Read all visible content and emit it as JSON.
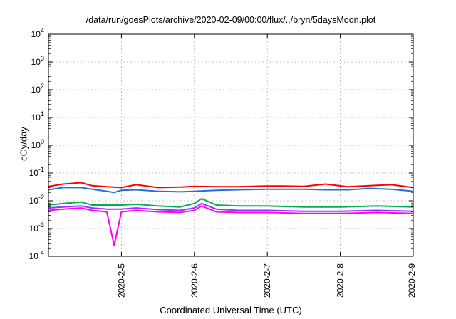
{
  "chart_data": {
    "type": "line",
    "title": "/data/run/goesPlots/archive/2020-02-09/00:00/flux/../bryn/5daysMoon.plot",
    "xlabel": "Coordinated Universal Time (UTC)",
    "ylabel": "cGy/day",
    "y_scale": "log",
    "ylim": [
      0.0001,
      10000
    ],
    "xlim": [
      "2020-02-04T00:00",
      "2020-02-09T00:00"
    ],
    "y_ticks": [
      {
        "value": 0.0001,
        "base": "10",
        "exp": "-4"
      },
      {
        "value": 0.001,
        "base": "10",
        "exp": "-3"
      },
      {
        "value": 0.01,
        "base": "10",
        "exp": "-2"
      },
      {
        "value": 0.1,
        "base": "10",
        "exp": "-1"
      },
      {
        "value": 1,
        "base": "10",
        "exp": "0"
      },
      {
        "value": 10,
        "base": "10",
        "exp": "1"
      },
      {
        "value": 100,
        "base": "10",
        "exp": "2"
      },
      {
        "value": 1000,
        "base": "10",
        "exp": "3"
      },
      {
        "value": 10000,
        "base": "10",
        "exp": "4"
      }
    ],
    "x_ticks": [
      {
        "label": "2020-2-5",
        "value": "2020-02-05"
      },
      {
        "label": "2020-2-6",
        "value": "2020-02-06"
      },
      {
        "label": "2020-2-7",
        "value": "2020-02-07"
      },
      {
        "label": "2020-2-8",
        "value": "2020-02-08"
      },
      {
        "label": "2020-2-9",
        "value": "2020-02-09"
      }
    ],
    "grid": true,
    "series": [
      {
        "color": "#ff0000",
        "time_days": [
          0,
          0.2,
          0.45,
          0.6,
          0.8,
          1.0,
          1.2,
          1.5,
          1.8,
          2.0,
          2.3,
          2.6,
          3.0,
          3.2,
          3.5,
          3.8,
          4.1,
          4.4,
          4.7,
          5.0
        ],
        "values": [
          0.033,
          0.04,
          0.045,
          0.035,
          0.032,
          0.03,
          0.038,
          0.03,
          0.031,
          0.033,
          0.032,
          0.032,
          0.034,
          0.034,
          0.033,
          0.04,
          0.032,
          0.035,
          0.038,
          0.03
        ]
      },
      {
        "color": "#1e6fe6",
        "time_days": [
          0,
          0.2,
          0.45,
          0.6,
          0.8,
          0.9,
          1.0,
          1.2,
          1.5,
          1.8,
          2.0,
          2.3,
          2.6,
          3.0,
          3.2,
          3.5,
          3.8,
          4.1,
          4.4,
          4.7,
          5.0
        ],
        "values": [
          0.025,
          0.03,
          0.03,
          0.026,
          0.022,
          0.02,
          0.024,
          0.025,
          0.022,
          0.021,
          0.022,
          0.024,
          0.025,
          0.026,
          0.026,
          0.026,
          0.025,
          0.025,
          0.028,
          0.026,
          0.022
        ]
      },
      {
        "color": "#00b050",
        "time_days": [
          0,
          0.2,
          0.45,
          0.6,
          0.8,
          1.0,
          1.2,
          1.5,
          1.8,
          2.0,
          2.1,
          2.3,
          2.6,
          3.0,
          3.5,
          4.0,
          4.5,
          5.0
        ],
        "values": [
          0.007,
          0.008,
          0.009,
          0.007,
          0.007,
          0.007,
          0.0075,
          0.0065,
          0.006,
          0.008,
          0.012,
          0.007,
          0.0065,
          0.0065,
          0.006,
          0.006,
          0.0065,
          0.006
        ]
      },
      {
        "color": "#9b30ff",
        "time_days": [
          0,
          0.2,
          0.45,
          0.6,
          0.8,
          1.0,
          1.2,
          1.5,
          1.8,
          2.0,
          2.1,
          2.3,
          2.6,
          3.0,
          3.5,
          4.0,
          4.5,
          5.0
        ],
        "values": [
          0.0055,
          0.006,
          0.0065,
          0.0055,
          0.005,
          0.005,
          0.0055,
          0.0048,
          0.0045,
          0.0055,
          0.008,
          0.005,
          0.0045,
          0.0045,
          0.0042,
          0.0042,
          0.0045,
          0.0042
        ]
      },
      {
        "color": "#ff00ff",
        "time_days": [
          0,
          0.2,
          0.45,
          0.6,
          0.8,
          0.9,
          1.0,
          1.2,
          1.5,
          1.8,
          2.0,
          2.1,
          2.3,
          2.6,
          3.0,
          3.5,
          4.0,
          4.5,
          5.0
        ],
        "values": [
          0.0045,
          0.005,
          0.0055,
          0.0045,
          0.004,
          0.00025,
          0.004,
          0.0045,
          0.004,
          0.0038,
          0.0045,
          0.0065,
          0.004,
          0.0038,
          0.0038,
          0.0035,
          0.0035,
          0.0038,
          0.0035
        ]
      }
    ]
  }
}
